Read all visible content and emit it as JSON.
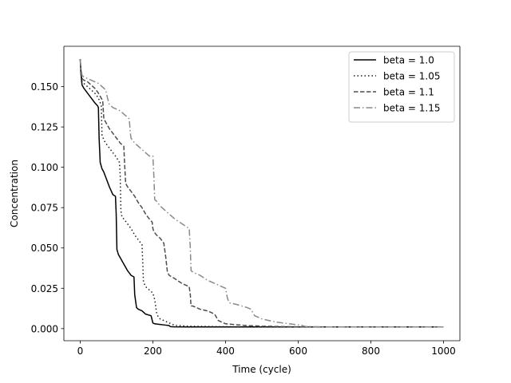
{
  "chart_data": {
    "type": "line",
    "title": "",
    "xlabel": "Time (cycle)",
    "ylabel": "Concentration",
    "xlim": [
      -45,
      1045
    ],
    "ylim": [
      -0.0075,
      0.175
    ],
    "xticks": [
      0,
      200,
      400,
      600,
      800,
      1000
    ],
    "xtick_labels": [
      "0",
      "200",
      "400",
      "600",
      "800",
      "1000"
    ],
    "yticks": [
      0.0,
      0.025,
      0.05,
      0.075,
      0.1,
      0.125,
      0.15
    ],
    "ytick_labels": [
      "0.000",
      "0.025",
      "0.050",
      "0.075",
      "0.100",
      "0.125",
      "0.150"
    ],
    "grid": false,
    "legend_position": "top-right",
    "series": [
      {
        "name": "beta = 1.0",
        "color": "#000000",
        "dash": "solid",
        "x": [
          0,
          2,
          5,
          10,
          20,
          30,
          40,
          48,
          50,
          52,
          55,
          60,
          65,
          70,
          80,
          90,
          97,
          99,
          101,
          105,
          110,
          120,
          130,
          140,
          148,
          150,
          155,
          160,
          170,
          180,
          195,
          200,
          205,
          215,
          230,
          245,
          248,
          260,
          300,
          400,
          500,
          600,
          700,
          800,
          900,
          1000
        ],
        "y": [
          0.167,
          0.158,
          0.151,
          0.149,
          0.146,
          0.143,
          0.14,
          0.138,
          0.137,
          0.118,
          0.103,
          0.099,
          0.097,
          0.094,
          0.088,
          0.083,
          0.082,
          0.071,
          0.049,
          0.046,
          0.044,
          0.04,
          0.036,
          0.033,
          0.032,
          0.021,
          0.013,
          0.012,
          0.011,
          0.009,
          0.008,
          0.0035,
          0.003,
          0.0027,
          0.0023,
          0.0019,
          0.0012,
          0.0011,
          0.001,
          0.001,
          0.001,
          0.001,
          0.001,
          0.001,
          0.001,
          0.001
        ]
      },
      {
        "name": "beta = 1.05",
        "color": "#1a1a1a",
        "dash": "dotted",
        "x": [
          0,
          2,
          5,
          10,
          20,
          30,
          40,
          50,
          55,
          58,
          60,
          65,
          70,
          80,
          90,
          100,
          108,
          110,
          112,
          115,
          120,
          130,
          140,
          150,
          160,
          170,
          172,
          174,
          180,
          190,
          200,
          205,
          210,
          215,
          220,
          230,
          240,
          250,
          260,
          300,
          400,
          500,
          600,
          700,
          800,
          900,
          1000
        ],
        "y": [
          0.167,
          0.16,
          0.153,
          0.152,
          0.15,
          0.148,
          0.146,
          0.143,
          0.14,
          0.138,
          0.12,
          0.117,
          0.115,
          0.112,
          0.109,
          0.106,
          0.103,
          0.095,
          0.073,
          0.069,
          0.068,
          0.065,
          0.062,
          0.058,
          0.055,
          0.052,
          0.042,
          0.029,
          0.026,
          0.024,
          0.022,
          0.018,
          0.01,
          0.007,
          0.006,
          0.005,
          0.004,
          0.003,
          0.002,
          0.0015,
          0.0012,
          0.0011,
          0.001,
          0.001,
          0.001,
          0.001,
          0.001
        ]
      },
      {
        "name": "beta = 1.1",
        "color": "#4d4d4d",
        "dash": "dashed",
        "x": [
          0,
          2,
          5,
          10,
          20,
          30,
          40,
          50,
          60,
          62,
          65,
          70,
          80,
          90,
          100,
          110,
          120,
          122,
          125,
          130,
          140,
          150,
          160,
          170,
          180,
          190,
          198,
          200,
          203,
          210,
          220,
          230,
          235,
          240,
          245,
          260,
          280,
          300,
          303,
          305,
          310,
          330,
          350,
          370,
          380,
          400,
          450,
          500,
          600,
          700,
          800,
          900,
          1000
        ],
        "y": [
          0.167,
          0.16,
          0.155,
          0.154,
          0.153,
          0.151,
          0.149,
          0.146,
          0.142,
          0.141,
          0.13,
          0.128,
          0.124,
          0.121,
          0.118,
          0.115,
          0.113,
          0.103,
          0.09,
          0.088,
          0.085,
          0.082,
          0.078,
          0.075,
          0.071,
          0.068,
          0.066,
          0.062,
          0.06,
          0.058,
          0.056,
          0.053,
          0.045,
          0.035,
          0.033,
          0.031,
          0.028,
          0.026,
          0.021,
          0.014,
          0.014,
          0.012,
          0.011,
          0.009,
          0.005,
          0.003,
          0.002,
          0.0015,
          0.0011,
          0.001,
          0.001,
          0.001,
          0.001
        ]
      },
      {
        "name": "beta = 1.15",
        "color": "#8a8a8a",
        "dash": "dashdot",
        "x": [
          0,
          2,
          5,
          10,
          20,
          30,
          40,
          50,
          60,
          70,
          75,
          80,
          90,
          100,
          110,
          120,
          130,
          135,
          138,
          140,
          150,
          160,
          170,
          180,
          190,
          200,
          203,
          205,
          210,
          220,
          240,
          260,
          280,
          300,
          303,
          305,
          310,
          330,
          350,
          370,
          390,
          400,
          405,
          410,
          430,
          460,
          470,
          480,
          500,
          540,
          610,
          620,
          700,
          800,
          900,
          1000
        ],
        "y": [
          0.167,
          0.162,
          0.157,
          0.156,
          0.155,
          0.154,
          0.153,
          0.152,
          0.15,
          0.148,
          0.143,
          0.139,
          0.137,
          0.136,
          0.135,
          0.133,
          0.131,
          0.13,
          0.121,
          0.118,
          0.115,
          0.113,
          0.111,
          0.109,
          0.107,
          0.107,
          0.093,
          0.08,
          0.079,
          0.076,
          0.072,
          0.068,
          0.065,
          0.062,
          0.05,
          0.036,
          0.035,
          0.033,
          0.03,
          0.028,
          0.026,
          0.025,
          0.019,
          0.016,
          0.015,
          0.013,
          0.012,
          0.008,
          0.006,
          0.004,
          0.002,
          0.0013,
          0.001,
          0.001,
          0.001,
          0.001
        ]
      }
    ]
  }
}
